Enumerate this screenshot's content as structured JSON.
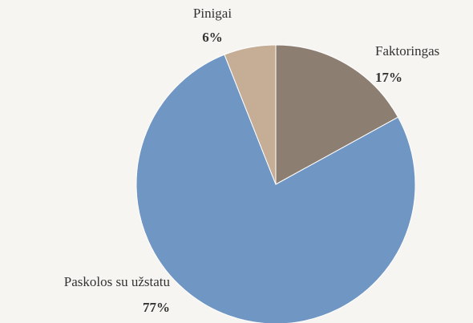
{
  "chart_data": {
    "type": "pie",
    "categories": [
      "Faktoringas",
      "Paskolos su užstatu",
      "Pinigai"
    ],
    "values": [
      17,
      77,
      6
    ],
    "value_labels": [
      "17%",
      "77%",
      "6%"
    ],
    "colors": [
      "#8d7e72",
      "#7096c4",
      "#c5ad96"
    ]
  }
}
